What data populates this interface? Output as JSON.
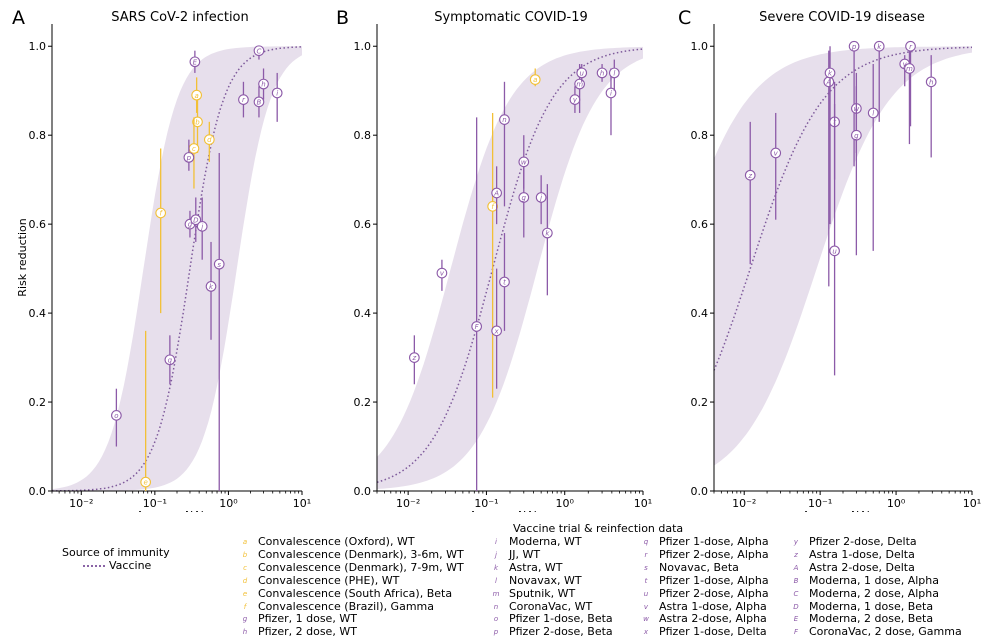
{
  "colors": {
    "purple": "#8c5aa8",
    "yellow": "#f2c037",
    "band": "#e7dfec",
    "curve": "#7e5a9b"
  },
  "legend": {
    "title": "Vaccine trial & reinfection data",
    "source_title": "Source of immunity",
    "source_line": "Vaccine",
    "col1": [
      {
        "key": "a",
        "label": "Convalescence (Oxford), WT",
        "color": "#f2c037"
      },
      {
        "key": "b",
        "label": "Convalescence (Denmark), 3-6m, WT",
        "color": "#f2c037"
      },
      {
        "key": "c",
        "label": "Convalescence (Denmark), 7-9m, WT",
        "color": "#f2c037"
      },
      {
        "key": "d",
        "label": "Convalescence (PHE), WT",
        "color": "#f2c037"
      },
      {
        "key": "e",
        "label": "Convalescence (South Africa), Beta",
        "color": "#f2c037"
      },
      {
        "key": "f",
        "label": "Convalescence (Brazil), Gamma",
        "color": "#f2c037"
      },
      {
        "key": "g",
        "label": "Pfizer, 1 dose, WT",
        "color": "#8c5aa8"
      },
      {
        "key": "h",
        "label": "Pfizer, 2 dose, WT",
        "color": "#8c5aa8"
      }
    ],
    "col2": [
      {
        "key": "i",
        "label": "Moderna, WT",
        "color": "#8c5aa8"
      },
      {
        "key": "j",
        "label": "JJ, WT",
        "color": "#8c5aa8"
      },
      {
        "key": "k",
        "label": "Astra, WT",
        "color": "#8c5aa8"
      },
      {
        "key": "l",
        "label": "Novavax, WT",
        "color": "#8c5aa8"
      },
      {
        "key": "m",
        "label": "Sputnik, WT",
        "color": "#8c5aa8"
      },
      {
        "key": "n",
        "label": "CoronaVac, WT",
        "color": "#8c5aa8"
      },
      {
        "key": "o",
        "label": "Pfizer 1-dose, Beta",
        "color": "#8c5aa8"
      },
      {
        "key": "p",
        "label": "Pfizer 2-dose, Beta",
        "color": "#8c5aa8"
      }
    ],
    "col3": [
      {
        "key": "q",
        "label": "Pfizer 1-dose, Alpha",
        "color": "#8c5aa8"
      },
      {
        "key": "r",
        "label": "Pfizer 2-dose, Alpha",
        "color": "#8c5aa8"
      },
      {
        "key": "s",
        "label": "Novavac, Beta",
        "color": "#8c5aa8"
      },
      {
        "key": "t",
        "label": "Pfizer 1-dose, Alpha",
        "color": "#8c5aa8"
      },
      {
        "key": "u",
        "label": "Pfizer 2-dose, Alpha",
        "color": "#8c5aa8"
      },
      {
        "key": "v",
        "label": "Astra 1-dose, Alpha",
        "color": "#8c5aa8"
      },
      {
        "key": "w",
        "label": "Astra 2-dose, Alpha",
        "color": "#8c5aa8"
      },
      {
        "key": "x",
        "label": "Pfizer 1-dose, Delta",
        "color": "#8c5aa8"
      }
    ],
    "col4": [
      {
        "key": "y",
        "label": "Pfizer 2-dose, Delta",
        "color": "#8c5aa8"
      },
      {
        "key": "z",
        "label": "Astra 1-dose, Delta",
        "color": "#8c5aa8"
      },
      {
        "key": "A",
        "label": "Astra 2-dose, Delta",
        "color": "#8c5aa8"
      },
      {
        "key": "B",
        "label": "Moderna, 1 dose, Alpha",
        "color": "#8c5aa8"
      },
      {
        "key": "C",
        "label": "Moderna, 2 dose, Alpha",
        "color": "#8c5aa8"
      },
      {
        "key": "D",
        "label": "Moderna, 1 dose, Beta",
        "color": "#8c5aa8"
      },
      {
        "key": "E",
        "label": "Moderna, 2 dose, Beta",
        "color": "#8c5aa8"
      },
      {
        "key": "F",
        "label": "CoronaVac, 2 dose, Gamma",
        "color": "#8c5aa8"
      }
    ]
  },
  "chart_data": [
    {
      "type": "scatter",
      "panel": "A",
      "title": "SARS CoV-2 infection",
      "xlabel": "Average NAb",
      "ylabel": "Risk reduction",
      "xscale": "log",
      "xlim": [
        0.004,
        10
      ],
      "ylim": [
        0,
        1.05
      ],
      "xticks": [
        0.01,
        0.1,
        1,
        10
      ],
      "xtick_labels": [
        "10⁻²",
        "10⁻¹",
        "10⁰",
        "10¹"
      ],
      "yticks": [
        0,
        0.2,
        0.4,
        0.6,
        0.8,
        1
      ],
      "ytick_labels": [
        "0.0",
        "0.2",
        "0.4",
        "0.6",
        "0.8",
        "1.0"
      ],
      "fit": {
        "x50": 0.3,
        "k": 1.9,
        "band_lo_x50": 1.3,
        "band_hi_x50": 0.07
      },
      "points": [
        {
          "k": "e",
          "x": 0.075,
          "y": 0.02,
          "lo": 0.0,
          "hi": 0.36,
          "c": "y"
        },
        {
          "k": "f",
          "x": 0.12,
          "y": 0.625,
          "lo": 0.4,
          "hi": 0.77,
          "c": "y"
        },
        {
          "k": "a",
          "x": 0.37,
          "y": 0.89,
          "lo": 0.85,
          "hi": 0.93,
          "c": "y"
        },
        {
          "k": "b",
          "x": 0.38,
          "y": 0.83,
          "lo": 0.76,
          "hi": 0.88,
          "c": "y"
        },
        {
          "k": "c",
          "x": 0.34,
          "y": 0.77,
          "lo": 0.68,
          "hi": 0.84,
          "c": "y"
        },
        {
          "k": "d",
          "x": 0.55,
          "y": 0.79,
          "lo": 0.74,
          "hi": 0.83,
          "c": "y"
        },
        {
          "k": "o",
          "x": 0.03,
          "y": 0.17,
          "lo": 0.1,
          "hi": 0.23,
          "c": "p"
        },
        {
          "k": "q",
          "x": 0.16,
          "y": 0.295,
          "lo": 0.24,
          "hi": 0.35,
          "c": "p"
        },
        {
          "k": "p",
          "x": 0.29,
          "y": 0.75,
          "lo": 0.72,
          "hi": 0.79,
          "c": "p"
        },
        {
          "k": "E",
          "x": 0.35,
          "y": 0.965,
          "lo": 0.94,
          "hi": 0.99,
          "c": "p"
        },
        {
          "k": "g",
          "x": 0.3,
          "y": 0.6,
          "lo": 0.57,
          "hi": 0.63,
          "c": "p"
        },
        {
          "k": "D",
          "x": 0.36,
          "y": 0.61,
          "lo": 0.56,
          "hi": 0.66,
          "c": "p"
        },
        {
          "k": "j",
          "x": 0.44,
          "y": 0.595,
          "lo": 0.52,
          "hi": 0.66,
          "c": "p"
        },
        {
          "k": "k",
          "x": 0.58,
          "y": 0.46,
          "lo": 0.34,
          "hi": 0.56,
          "c": "p"
        },
        {
          "k": "s",
          "x": 0.75,
          "y": 0.51,
          "lo": 0.0,
          "hi": 0.76,
          "c": "p"
        },
        {
          "k": "r",
          "x": 1.6,
          "y": 0.88,
          "lo": 0.84,
          "hi": 0.92,
          "c": "p"
        },
        {
          "k": "C",
          "x": 2.6,
          "y": 0.99,
          "lo": 0.97,
          "hi": 1.0,
          "c": "p"
        },
        {
          "k": "B",
          "x": 2.6,
          "y": 0.875,
          "lo": 0.84,
          "hi": 0.91,
          "c": "p"
        },
        {
          "k": "h",
          "x": 3.0,
          "y": 0.915,
          "lo": 0.88,
          "hi": 0.95,
          "c": "p"
        },
        {
          "k": "i",
          "x": 4.6,
          "y": 0.895,
          "lo": 0.83,
          "hi": 0.94,
          "c": "p"
        }
      ]
    },
    {
      "type": "scatter",
      "panel": "B",
      "title": "Symptomatic COVID-19",
      "xlabel": "Average NAb",
      "ylabel": "",
      "xscale": "log",
      "xlim": [
        0.004,
        10
      ],
      "ylim": [
        0,
        1.05
      ],
      "xticks": [
        0.01,
        0.1,
        1,
        10
      ],
      "xtick_labels": [
        "10⁻²",
        "10⁻¹",
        "10⁰",
        "10¹"
      ],
      "yticks": [
        0,
        0.2,
        0.4,
        0.6,
        0.8,
        1
      ],
      "ytick_labels": [
        "0.0",
        "0.2",
        "0.4",
        "0.6",
        "0.8",
        "1.0"
      ],
      "fit": {
        "x50": 0.12,
        "k": 1.15,
        "band_lo_x50": 0.45,
        "band_hi_x50": 0.035
      },
      "points": [
        {
          "k": "z",
          "x": 0.012,
          "y": 0.3,
          "lo": 0.24,
          "hi": 0.35,
          "c": "p"
        },
        {
          "k": "v",
          "x": 0.027,
          "y": 0.49,
          "lo": 0.45,
          "hi": 0.52,
          "c": "p"
        },
        {
          "k": "F",
          "x": 0.075,
          "y": 0.37,
          "lo": 0.0,
          "hi": 0.84,
          "c": "p"
        },
        {
          "k": "f",
          "x": 0.12,
          "y": 0.64,
          "lo": 0.21,
          "hi": 0.85,
          "c": "y"
        },
        {
          "k": "x",
          "x": 0.135,
          "y": 0.36,
          "lo": 0.23,
          "hi": 0.5,
          "c": "p"
        },
        {
          "k": "A",
          "x": 0.135,
          "y": 0.67,
          "lo": 0.6,
          "hi": 0.73,
          "c": "p"
        },
        {
          "k": "n",
          "x": 0.17,
          "y": 0.835,
          "lo": 0.64,
          "hi": 0.92,
          "c": "p"
        },
        {
          "k": "t",
          "x": 0.17,
          "y": 0.47,
          "lo": 0.36,
          "hi": 0.58,
          "c": "p"
        },
        {
          "k": "a",
          "x": 0.42,
          "y": 0.925,
          "lo": 0.91,
          "hi": 0.95,
          "c": "y"
        },
        {
          "k": "w",
          "x": 0.3,
          "y": 0.74,
          "lo": 0.68,
          "hi": 0.8,
          "c": "p"
        },
        {
          "k": "g",
          "x": 0.3,
          "y": 0.66,
          "lo": 0.57,
          "hi": 0.73,
          "c": "p"
        },
        {
          "k": "j",
          "x": 0.5,
          "y": 0.66,
          "lo": 0.6,
          "hi": 0.71,
          "c": "p"
        },
        {
          "k": "k",
          "x": 0.6,
          "y": 0.58,
          "lo": 0.44,
          "hi": 0.69,
          "c": "p"
        },
        {
          "k": "y",
          "x": 1.35,
          "y": 0.88,
          "lo": 0.85,
          "hi": 0.91,
          "c": "p"
        },
        {
          "k": "m",
          "x": 1.55,
          "y": 0.915,
          "lo": 0.85,
          "hi": 0.96,
          "c": "p"
        },
        {
          "k": "u",
          "x": 1.65,
          "y": 0.94,
          "lo": 0.92,
          "hi": 0.96,
          "c": "p"
        },
        {
          "k": "h",
          "x": 3.0,
          "y": 0.94,
          "lo": 0.92,
          "hi": 0.96,
          "c": "p"
        },
        {
          "k": "i",
          "x": 3.9,
          "y": 0.895,
          "lo": 0.8,
          "hi": 0.95,
          "c": "p"
        },
        {
          "k": "l",
          "x": 4.3,
          "y": 0.94,
          "lo": 0.9,
          "hi": 0.97,
          "c": "p"
        }
      ]
    },
    {
      "type": "scatter",
      "panel": "C",
      "title": "Severe COVID-19 disease",
      "xlabel": "Average NAb",
      "ylabel": "",
      "xscale": "log",
      "xlim": [
        0.004,
        10
      ],
      "ylim": [
        0,
        1.05
      ],
      "xticks": [
        0.01,
        0.1,
        1,
        10
      ],
      "xtick_labels": [
        "10⁻²",
        "10⁻¹",
        "10⁰",
        "10¹"
      ],
      "yticks": [
        0,
        0.2,
        0.4,
        0.6,
        0.8,
        1
      ],
      "ytick_labels": [
        "0.0",
        "0.2",
        "0.4",
        "0.6",
        "0.8",
        "1.0"
      ],
      "fit": {
        "x50": 0.012,
        "k": 0.9,
        "band_lo_x50": 0.09,
        "band_hi_x50": 0.0012
      },
      "points": [
        {
          "k": "z",
          "x": 0.012,
          "y": 0.71,
          "lo": 0.51,
          "hi": 0.83,
          "c": "p"
        },
        {
          "k": "v",
          "x": 0.026,
          "y": 0.76,
          "lo": 0.61,
          "hi": 0.85,
          "c": "p"
        },
        {
          "k": "A",
          "x": 0.13,
          "y": 0.92,
          "lo": 0.46,
          "hi": 0.99,
          "c": "p"
        },
        {
          "k": "k",
          "x": 0.135,
          "y": 0.94,
          "lo": 0.6,
          "hi": 1.0,
          "c": "p"
        },
        {
          "k": "t",
          "x": 0.155,
          "y": 0.83,
          "lo": 0.7,
          "hi": 0.92,
          "c": "p"
        },
        {
          "k": "u",
          "x": 0.155,
          "y": 0.54,
          "lo": 0.26,
          "hi": 0.87,
          "c": "p"
        },
        {
          "k": "p",
          "x": 0.28,
          "y": 1.0,
          "lo": 0.73,
          "hi": 1.0,
          "c": "p"
        },
        {
          "k": "w",
          "x": 0.3,
          "y": 0.86,
          "lo": 0.76,
          "hi": 0.94,
          "c": "p"
        },
        {
          "k": "g",
          "x": 0.3,
          "y": 0.8,
          "lo": 0.53,
          "hi": 0.91,
          "c": "p"
        },
        {
          "k": "l",
          "x": 0.5,
          "y": 0.85,
          "lo": 0.54,
          "hi": 0.96,
          "c": "p"
        },
        {
          "k": "k",
          "x": 0.6,
          "y": 1.0,
          "lo": 0.83,
          "hi": 1.0,
          "c": "p"
        },
        {
          "k": "y",
          "x": 1.3,
          "y": 0.96,
          "lo": 0.91,
          "hi": 0.98,
          "c": "p"
        },
        {
          "k": "r",
          "x": 1.55,
          "y": 1.0,
          "lo": 0.82,
          "hi": 1.0,
          "c": "p"
        },
        {
          "k": "m",
          "x": 1.5,
          "y": 0.95,
          "lo": 0.78,
          "hi": 0.99,
          "c": "p"
        },
        {
          "k": "h",
          "x": 2.9,
          "y": 0.92,
          "lo": 0.75,
          "hi": 0.98,
          "c": "p"
        }
      ]
    }
  ]
}
